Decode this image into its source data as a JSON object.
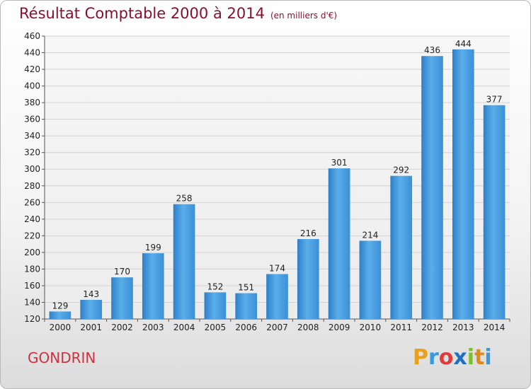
{
  "title": "Résultat Comptable 2000 à 2014",
  "subtitle": "(en milliers d'€)",
  "commune": "GONDRIN",
  "logo": {
    "letters": [
      "P",
      "r",
      "o",
      "x",
      "i",
      "t",
      "i"
    ],
    "colors": [
      "#e8a11d",
      "#3a9ad9",
      "#e03a3a",
      "#1f6fc4",
      "#7bbf2a",
      "#e08a1d",
      "#3a9ad9"
    ]
  },
  "chart_data": {
    "type": "bar",
    "title": "Résultat Comptable 2000 à 2014",
    "subtitle": "(en milliers d'€)",
    "xlabel": "",
    "ylabel": "",
    "categories": [
      "2000",
      "2001",
      "2002",
      "2003",
      "2004",
      "2005",
      "2006",
      "2007",
      "2008",
      "2009",
      "2010",
      "2011",
      "2012",
      "2013",
      "2014"
    ],
    "values": [
      129,
      143,
      170,
      199,
      258,
      152,
      151,
      174,
      216,
      301,
      214,
      292,
      436,
      444,
      377
    ],
    "ylim": [
      120,
      460
    ],
    "yticks": [
      120,
      140,
      160,
      180,
      200,
      220,
      240,
      260,
      280,
      300,
      320,
      340,
      360,
      380,
      400,
      420,
      440,
      460
    ],
    "grid": true,
    "bar_color": "#3a8fd6"
  }
}
